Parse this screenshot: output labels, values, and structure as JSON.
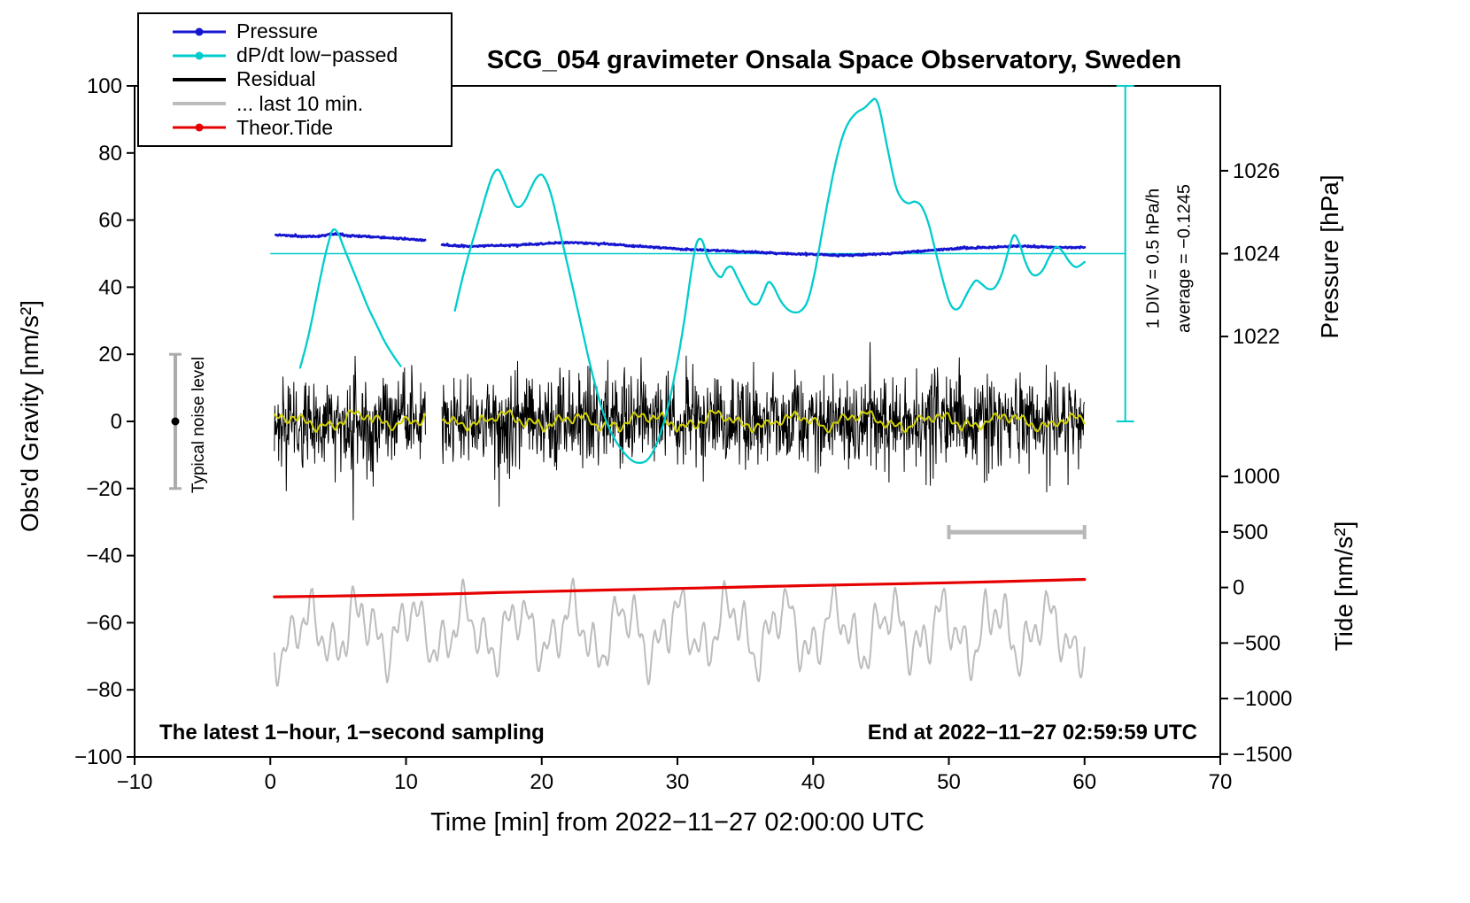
{
  "header": {
    "title": "SCG_054 gravimeter Onsala Space Observatory, Sweden"
  },
  "axes": {
    "left_label": "Obs'd Gravity [nm/s²]",
    "bottom_label": "Time [min] from 2022−11−27 02:00:00 UTC",
    "right_top_label": "Pressure [hPa]",
    "right_bottom_label": "Tide [nm/s²]"
  },
  "annotations": {
    "bottom_left": "The latest 1−hour, 1−second sampling",
    "bottom_right": "End at 2022−11−27 02:59:59 UTC",
    "noise_label": "Typical noise level",
    "div_label": "1 DIV = 0.5 hPa/h",
    "avg_label": "average = −0.1245"
  },
  "legend": {
    "items": [
      {
        "label": "Pressure",
        "color": "#1616d1",
        "marker": true,
        "thick": false
      },
      {
        "label": "dP/dt low−passed",
        "color": "#00cccc",
        "marker": true,
        "thick": false
      },
      {
        "label": "Residual",
        "color": "#000000",
        "marker": false,
        "thick": true
      },
      {
        "label": "... last 10 min.",
        "color": "#bdbdbd",
        "marker": false,
        "thick": true
      },
      {
        "label": "Theor.Tide",
        "color": "#e60000",
        "marker": true,
        "thick": false
      }
    ]
  },
  "chart_data": {
    "type": "line",
    "title": "SCG_054 gravimeter Onsala Space Observatory, Sweden",
    "xlabel": "Time [min] from 2022−11−27 02:00:00 UTC",
    "ylabel": "Obs'd Gravity [nm/s²]",
    "xlim": [
      -10,
      70
    ],
    "ylim": [
      -100,
      100
    ],
    "xticks": [
      -10,
      0,
      10,
      20,
      30,
      40,
      50,
      60,
      70
    ],
    "yticks": [
      -100,
      -80,
      -60,
      -40,
      -20,
      0,
      20,
      40,
      60,
      80,
      100
    ],
    "gap": [
      11.45,
      12.65
    ],
    "pressure_axis": {
      "ticks": [
        1026,
        1024,
        1022
      ],
      "hpa_ref": 1024,
      "gravity_ref": 50,
      "gravity_per_hpa": 12.35
    },
    "tide_axis": {
      "ticks": [
        1000,
        500,
        0,
        -500,
        -1000,
        -1500
      ],
      "gravity_ref": -49.5,
      "gravity_per_unit": 0.0331
    },
    "reference_line": {
      "y": 50,
      "x_from": 0,
      "x_to": 63,
      "color": "#00cccc"
    },
    "div_scale": {
      "x": 63,
      "y_from": 0,
      "y_to": 100,
      "color": "#00cccc"
    },
    "noise_bar": {
      "x": -7,
      "y": 0,
      "half": 20,
      "color": "#ababab",
      "dot_color": "#000000"
    },
    "time_bar": {
      "x_from": 50,
      "x_to": 60,
      "y": -33,
      "color": "#b8b8b8"
    },
    "series": [
      {
        "id": "last10",
        "name": "... last 10 min.",
        "kind": "smooth",
        "color": "#bdbdbd",
        "width": 2,
        "params": {
          "x_from": 0.3,
          "x_to": 60,
          "step": 0.05,
          "offset": -62.5,
          "amp": [
            6.5,
            5.0,
            3.8
          ],
          "periods": [
            3.9,
            1.6,
            0.74
          ],
          "noise": 1.3,
          "seed": 13
        }
      },
      {
        "id": "tide",
        "name": "Theor.Tide",
        "kind": "points",
        "smooth": true,
        "color": "#e60000",
        "width": 3.2,
        "points": [
          [
            0.3,
            -52.3
          ],
          [
            10,
            -51.7
          ],
          [
            20,
            -50.7
          ],
          [
            30,
            -49.8
          ],
          [
            40,
            -48.9
          ],
          [
            50,
            -48.1
          ],
          [
            60,
            -47.1
          ]
        ]
      },
      {
        "id": "residual",
        "name": "Residual",
        "kind": "noise",
        "color": "#000000",
        "width": 1,
        "gap": true,
        "params": {
          "x_from": 0.3,
          "x_to": 60,
          "step": 0.035,
          "std": 6.8,
          "spike_prob": 0.014,
          "spike_scale": 2.3,
          "clamp": 34,
          "seed": 42
        }
      },
      {
        "id": "residual-lowpass",
        "name": "Residual low−passed",
        "kind": "smooth",
        "color": "#d2d200",
        "width": 2,
        "gap": true,
        "params": {
          "x_from": 0.3,
          "x_to": 60,
          "step": 0.08,
          "offset": 0,
          "amp": [
            1.5,
            1.0,
            0.8
          ],
          "periods": [
            5.3,
            1.9,
            0.7
          ],
          "noise": 0.55,
          "seed": 7
        }
      },
      {
        "id": "pressure",
        "name": "Pressure",
        "kind": "points",
        "densify_step": 0.05,
        "jitter": 0.14,
        "seed": 5,
        "gap": true,
        "color": "#1616d1",
        "width": 2.8,
        "points": [
          [
            0.4,
            55.6
          ],
          [
            1.5,
            55.3
          ],
          [
            2.5,
            55.1
          ],
          [
            3.5,
            55.1
          ],
          [
            4.3,
            55.7
          ],
          [
            4.8,
            55.9
          ],
          [
            5.5,
            55.5
          ],
          [
            6.5,
            55.2
          ],
          [
            7.5,
            55.0
          ],
          [
            8.5,
            54.8
          ],
          [
            9.5,
            54.5
          ],
          [
            10.5,
            54.2
          ],
          [
            11.4,
            53.9
          ],
          [
            12.0,
            53.3
          ],
          [
            12.8,
            52.7
          ],
          [
            13.6,
            52.4
          ],
          [
            14.6,
            52.2
          ],
          [
            16,
            52.4
          ],
          [
            18,
            52.5
          ],
          [
            19.5,
            52.8
          ],
          [
            21,
            53.2
          ],
          [
            22.5,
            53.3
          ],
          [
            24,
            53.0
          ],
          [
            25.5,
            52.7
          ],
          [
            27,
            52.2
          ],
          [
            28.5,
            51.9
          ],
          [
            30,
            51.4
          ],
          [
            31.5,
            51.1
          ],
          [
            33,
            50.9
          ],
          [
            34.5,
            50.7
          ],
          [
            36,
            50.4
          ],
          [
            37.5,
            50.1
          ],
          [
            39,
            49.9
          ],
          [
            40.5,
            49.7
          ],
          [
            41.8,
            49.5
          ],
          [
            43,
            49.6
          ],
          [
            44.5,
            49.8
          ],
          [
            46,
            50.1
          ],
          [
            47.5,
            50.6
          ],
          [
            49,
            51.1
          ],
          [
            50.5,
            51.5
          ],
          [
            52,
            51.7
          ],
          [
            53.5,
            51.9
          ],
          [
            54.8,
            52.2
          ],
          [
            55.6,
            52.3
          ],
          [
            56.5,
            52.0
          ],
          [
            57.5,
            51.9
          ],
          [
            58.7,
            51.8
          ],
          [
            60,
            51.9
          ]
        ]
      },
      {
        "id": "dpdt",
        "name": "dP/dt low−passed",
        "kind": "points",
        "smooth": true,
        "color": "#00cccc",
        "width": 2.3,
        "points": [
          [
            2.2,
            16
          ],
          [
            2.6,
            22
          ],
          [
            3,
            29
          ],
          [
            3.4,
            37
          ],
          [
            3.8,
            45
          ],
          [
            4.2,
            52
          ],
          [
            4.6,
            57
          ],
          [
            5,
            56
          ],
          [
            5.4,
            52
          ],
          [
            6,
            46
          ],
          [
            6.6,
            40
          ],
          [
            7.2,
            34
          ],
          [
            7.8,
            29
          ],
          [
            8.4,
            24
          ],
          [
            9,
            20
          ],
          [
            9.6,
            16.5
          ],
          null,
          [
            13.6,
            33
          ],
          [
            14,
            40
          ],
          [
            14.5,
            48
          ],
          [
            15,
            55
          ],
          [
            15.5,
            62
          ],
          [
            16,
            69
          ],
          [
            16.4,
            73.5
          ],
          [
            16.8,
            75
          ],
          [
            17.2,
            72
          ],
          [
            17.6,
            68
          ],
          [
            18,
            64.5
          ],
          [
            18.4,
            64
          ],
          [
            18.8,
            66
          ],
          [
            19.2,
            69.5
          ],
          [
            19.6,
            72.5
          ],
          [
            20,
            73.5
          ],
          [
            20.4,
            71
          ],
          [
            20.8,
            66
          ],
          [
            21.2,
            59
          ],
          [
            21.6,
            52
          ],
          [
            22,
            45
          ],
          [
            22.5,
            36
          ],
          [
            23,
            27
          ],
          [
            23.5,
            18
          ],
          [
            24,
            10
          ],
          [
            24.5,
            3
          ],
          [
            25.2,
            -4
          ],
          [
            26,
            -9
          ],
          [
            26.8,
            -12
          ],
          [
            27.6,
            -12
          ],
          [
            28.2,
            -9
          ],
          [
            28.8,
            -3
          ],
          [
            29.4,
            6
          ],
          [
            30,
            18
          ],
          [
            30.5,
            30
          ],
          [
            31,
            44
          ],
          [
            31.4,
            53
          ],
          [
            31.8,
            54
          ],
          [
            32.2,
            49
          ],
          [
            32.7,
            45
          ],
          [
            33.2,
            43
          ],
          [
            33.6,
            45.5
          ],
          [
            34,
            46
          ],
          [
            34.4,
            43
          ],
          [
            34.9,
            39
          ],
          [
            35.4,
            35.5
          ],
          [
            35.9,
            35
          ],
          [
            36.3,
            38
          ],
          [
            36.7,
            41.5
          ],
          [
            37.1,
            40
          ],
          [
            37.6,
            36
          ],
          [
            38.1,
            33.5
          ],
          [
            38.6,
            32.5
          ],
          [
            39.1,
            33
          ],
          [
            39.6,
            36
          ],
          [
            40.1,
            44
          ],
          [
            40.6,
            55
          ],
          [
            41.1,
            66
          ],
          [
            41.6,
            76
          ],
          [
            42.1,
            84
          ],
          [
            42.6,
            89
          ],
          [
            43.2,
            92
          ],
          [
            43.8,
            93.5
          ],
          [
            44.3,
            95.5
          ],
          [
            44.6,
            96
          ],
          [
            44.9,
            93
          ],
          [
            45.3,
            85
          ],
          [
            45.7,
            77
          ],
          [
            46.1,
            70
          ],
          [
            46.5,
            66.5
          ],
          [
            47,
            65
          ],
          [
            47.5,
            65.5
          ],
          [
            48,
            64
          ],
          [
            48.5,
            59
          ],
          [
            49,
            51
          ],
          [
            49.5,
            43
          ],
          [
            50,
            36
          ],
          [
            50.4,
            33.5
          ],
          [
            50.8,
            34
          ],
          [
            51.2,
            37
          ],
          [
            51.6,
            40
          ],
          [
            52,
            42
          ],
          [
            52.4,
            41
          ],
          [
            52.9,
            39.5
          ],
          [
            53.4,
            40
          ],
          [
            53.9,
            44
          ],
          [
            54.4,
            51
          ],
          [
            54.8,
            55.5
          ],
          [
            55.2,
            53
          ],
          [
            55.6,
            48
          ],
          [
            56,
            44.5
          ],
          [
            56.4,
            43.5
          ],
          [
            56.9,
            45
          ],
          [
            57.4,
            49
          ],
          [
            57.9,
            52
          ],
          [
            58.4,
            50.5
          ],
          [
            58.9,
            47.5
          ],
          [
            59.4,
            46
          ],
          [
            60,
            47.5
          ]
        ]
      }
    ]
  }
}
